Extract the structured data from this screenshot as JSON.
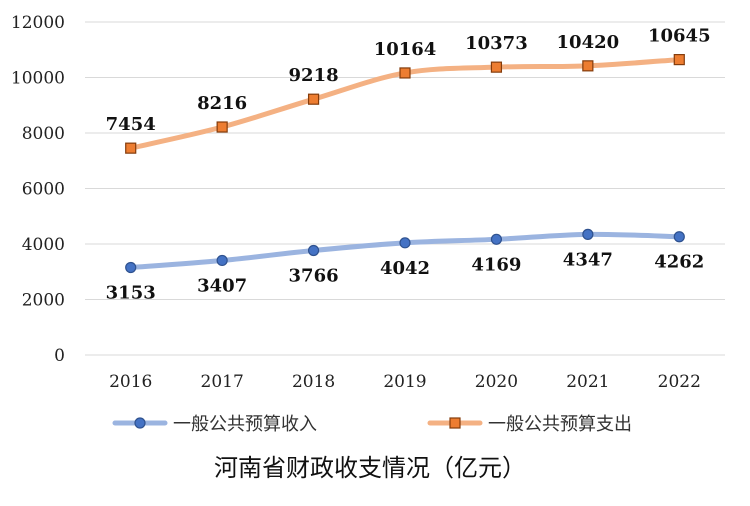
{
  "chart_data": {
    "type": "line",
    "title": "河南省财政收支情况（亿元）",
    "categories": [
      "2016",
      "2017",
      "2018",
      "2019",
      "2020",
      "2021",
      "2022"
    ],
    "ylim": [
      0,
      12000
    ],
    "yticks": [
      0,
      2000,
      4000,
      6000,
      8000,
      10000,
      12000
    ],
    "grid": true,
    "legend_position": "bottom",
    "series": [
      {
        "name": "一般公共预算收入",
        "values": [
          3153,
          3407,
          3766,
          4042,
          4169,
          4347,
          4262
        ],
        "line_color": "#9bb4e0",
        "marker_fill": "#4472c4",
        "marker_stroke": "#2f528f",
        "marker": "circle",
        "label_position": "below"
      },
      {
        "name": "一般公共预算支出",
        "values": [
          7454,
          8216,
          9218,
          10164,
          10373,
          10420,
          10645
        ],
        "line_color": "#f4b183",
        "marker_fill": "#ed7d31",
        "marker_stroke": "#843c0c",
        "marker": "square",
        "label_position": "above"
      }
    ]
  }
}
